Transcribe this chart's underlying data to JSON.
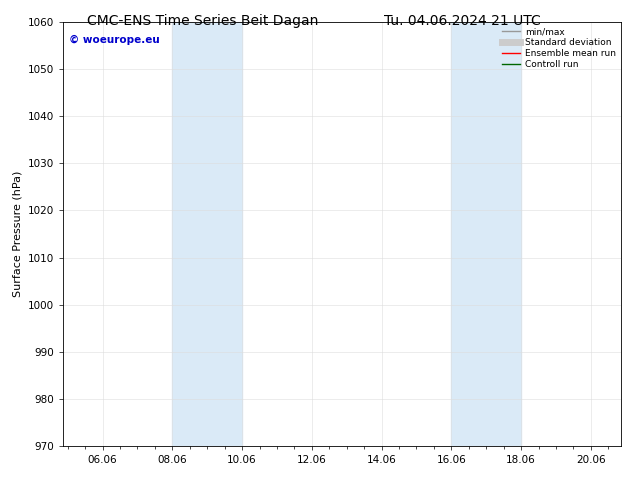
{
  "title_left": "CMC-ENS Time Series Beit Dagan",
  "title_right": "Tu. 04.06.2024 21 UTC",
  "ylabel": "Surface Pressure (hPa)",
  "ylim": [
    970,
    1060
  ],
  "yticks": [
    970,
    980,
    990,
    1000,
    1010,
    1020,
    1030,
    1040,
    1050,
    1060
  ],
  "xtick_labels": [
    "06.06",
    "08.06",
    "10.06",
    "12.06",
    "14.06",
    "16.06",
    "18.06",
    "20.06"
  ],
  "shaded_color": "#daeaf7",
  "watermark_text": "© woeurope.eu",
  "watermark_color": "#0000cc",
  "legend_entries": [
    {
      "label": "min/max",
      "color": "#999999",
      "lw": 1.0,
      "style": "solid"
    },
    {
      "label": "Standard deviation",
      "color": "#cccccc",
      "lw": 5,
      "style": "solid"
    },
    {
      "label": "Ensemble mean run",
      "color": "#ff0000",
      "lw": 1.0,
      "style": "solid"
    },
    {
      "label": "Controll run",
      "color": "#006600",
      "lw": 1.0,
      "style": "solid"
    }
  ],
  "bg_color": "#ffffff",
  "plot_bg_color": "#ffffff",
  "title_fontsize": 10,
  "label_fontsize": 8,
  "tick_fontsize": 7.5
}
